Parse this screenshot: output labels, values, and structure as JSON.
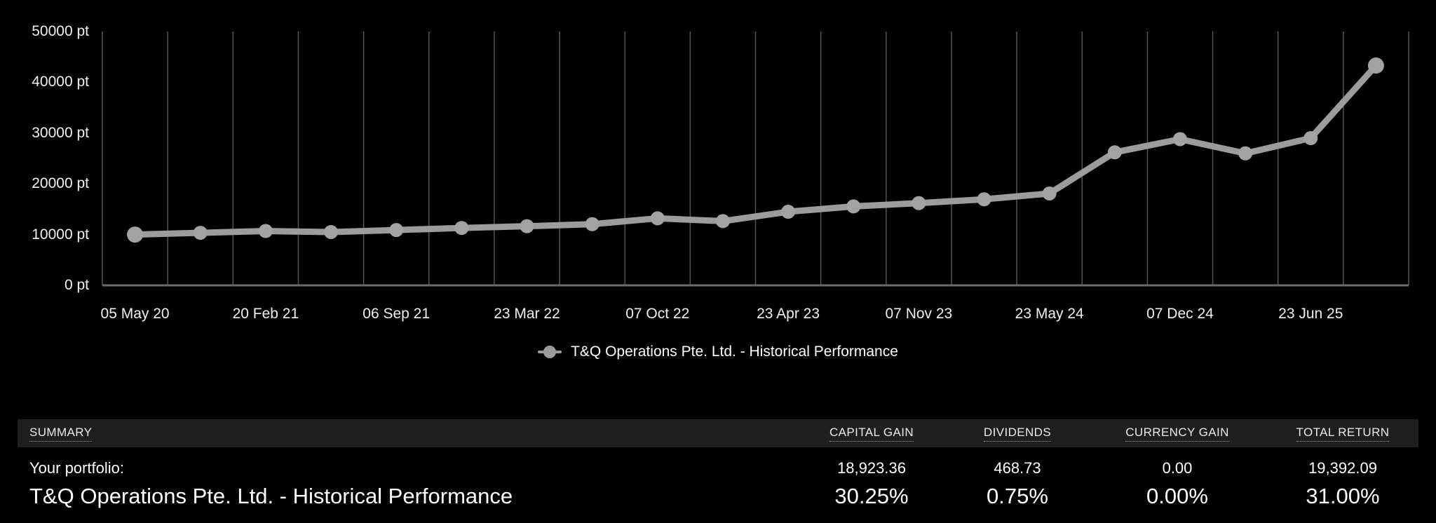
{
  "chart_data": {
    "type": "line",
    "title": "",
    "xlabel": "",
    "ylabel": "",
    "unit_suffix": " pt",
    "categories": [
      "05 May 20",
      "",
      "20 Feb 21",
      "",
      "06 Sep 21",
      "",
      "23 Mar 22",
      "",
      "07 Oct 22",
      "",
      "23 Apr 23",
      "",
      "07 Nov 23",
      "",
      "23 May 24",
      "",
      "07 Dec 24",
      "",
      "23 Jun 25",
      ""
    ],
    "x_tick_labels": [
      "05 May 20",
      "20 Feb 21",
      "06 Sep 21",
      "23 Mar 22",
      "07 Oct 22",
      "23 Apr 23",
      "07 Nov 23",
      "23 May 24",
      "07 Dec 24",
      "23 Jun 25"
    ],
    "x_label_every": 2,
    "series": [
      {
        "name": "T&Q Operations Pte. Ltd. - Historical Performance",
        "values": [
          10000,
          10350,
          10700,
          10500,
          10900,
          11300,
          11650,
          12050,
          13200,
          12650,
          14500,
          15550,
          16200,
          16950,
          18100,
          26200,
          28800,
          26000,
          29000,
          43300
        ]
      }
    ],
    "y_ticks": [
      0,
      10000,
      20000,
      30000,
      40000,
      50000
    ],
    "ylim": [
      0,
      50000
    ],
    "grid": "vertical-only",
    "legend_position": "bottom-center",
    "colors": {
      "background": "#000000",
      "line": "#9c9c9c",
      "marker": "#a3a3a3",
      "grid": "#555555",
      "axis": "#6b6b6b",
      "text": "#f0f0f0"
    }
  },
  "legend": {
    "label": "T&Q Operations Pte. Ltd. - Historical Performance"
  },
  "summary": {
    "header": {
      "summary": "SUMMARY",
      "capital_gain": "CAPITAL GAIN",
      "dividends": "DIVIDENDS",
      "currency_gain": "CURRENCY GAIN",
      "total_return": "TOTAL RETURN"
    },
    "rows": [
      {
        "name": "Your portfolio:",
        "capital_gain": "18,923.36",
        "dividends": "468.73",
        "currency_gain": "0.00",
        "total_return": "19,392.09"
      },
      {
        "name": "T&Q Operations Pte. Ltd. - Historical Performance",
        "capital_gain": "30.25%",
        "dividends": "0.75%",
        "currency_gain": "0.00%",
        "total_return": "31.00%"
      }
    ]
  }
}
